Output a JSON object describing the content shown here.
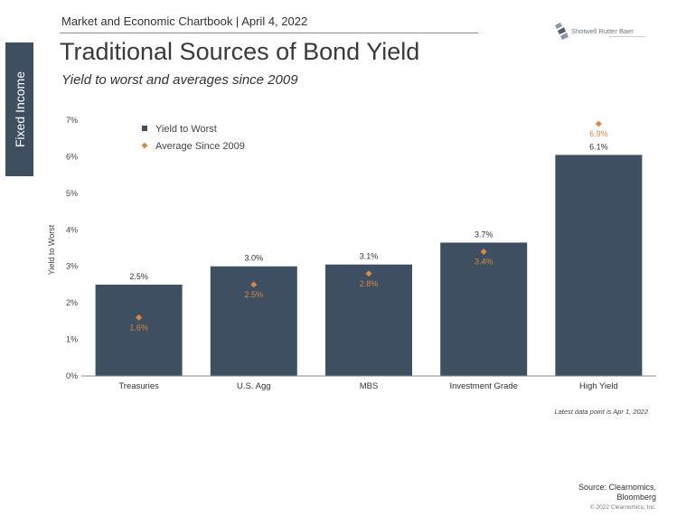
{
  "header": {
    "line": "Market and Economic Chartbook | April 4, 2022",
    "side_tab": "Fixed Income",
    "logo": {
      "text": "Shotwell Rutter Baer",
      "icon": "logo-mark-icon"
    }
  },
  "chart_data": {
    "type": "bar",
    "title": "Traditional Sources of Bond Yield",
    "subtitle": "Yield to worst and averages since 2009",
    "ylabel": "Yield to Worst",
    "xlabel": "",
    "ylim": [
      0,
      7
    ],
    "y_ticks": [
      "0%",
      "1%",
      "2%",
      "3%",
      "4%",
      "5%",
      "6%",
      "7%"
    ],
    "categories": [
      "Treasuries",
      "U.S. Agg",
      "MBS",
      "Investment Grade",
      "High Yield"
    ],
    "series": [
      {
        "name": "Yield to Worst",
        "mark": "bar",
        "color": "#3d4f60",
        "values": [
          2.5,
          3.0,
          3.05,
          3.65,
          6.05
        ],
        "labels": [
          "2.5%",
          "3.0%",
          "3.1%",
          "3.7%",
          "6.1%"
        ]
      },
      {
        "name": "Average Since 2009",
        "mark": "diamond",
        "color": "#d68a46",
        "values": [
          1.6,
          2.5,
          2.8,
          3.4,
          6.9
        ],
        "labels": [
          "1.6%",
          "2.5%",
          "2.8%",
          "3.4%",
          "6.9%"
        ]
      }
    ],
    "legend_position": "top-left",
    "grid": false
  },
  "footer": {
    "note": "Latest data point is Apr 1, 2022",
    "source_line1": "Source: Clearnomics,",
    "source_line2": "Bloomberg",
    "copyright": "© 2022 Clearnomics, Inc."
  }
}
